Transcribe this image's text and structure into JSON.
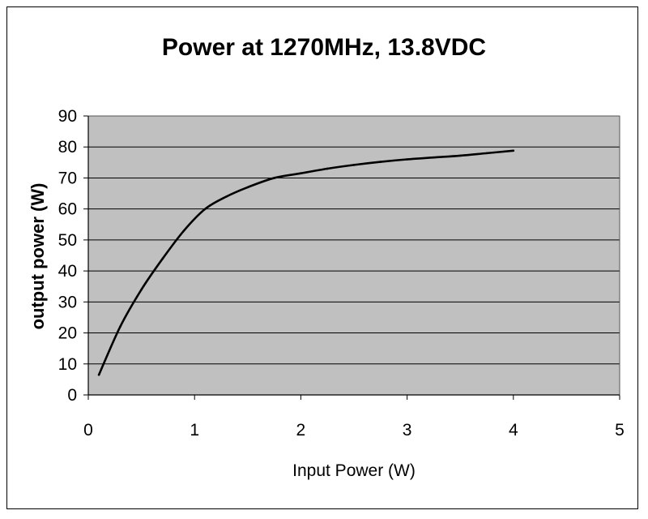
{
  "chart_data": {
    "type": "line",
    "title": "Power at 1270MHz, 13.8VDC",
    "xlabel": "Input Power (W)",
    "ylabel": "output power (W)",
    "xlim": [
      0,
      5
    ],
    "ylim": [
      0,
      90
    ],
    "x_ticks": [
      "0",
      "1",
      "2",
      "3",
      "4",
      "5"
    ],
    "y_ticks": [
      "0",
      "10",
      "20",
      "30",
      "40",
      "50",
      "60",
      "70",
      "80",
      "90"
    ],
    "grid": true,
    "legend": "none",
    "plot_background": "#c0c0c0",
    "line_color": "#000000",
    "series": [
      {
        "x": [
          0.1,
          0.3,
          0.5,
          0.7,
          0.9,
          1.1,
          1.3,
          1.5,
          1.75,
          2.0,
          2.25,
          2.5,
          2.75,
          3.0,
          3.25,
          3.5,
          3.75,
          4.0
        ],
        "values": [
          6.5,
          22,
          34,
          44,
          53,
          60,
          64,
          67,
          70,
          71.5,
          73,
          74.2,
          75.2,
          76,
          76.6,
          77.2,
          78,
          78.8
        ]
      }
    ]
  }
}
